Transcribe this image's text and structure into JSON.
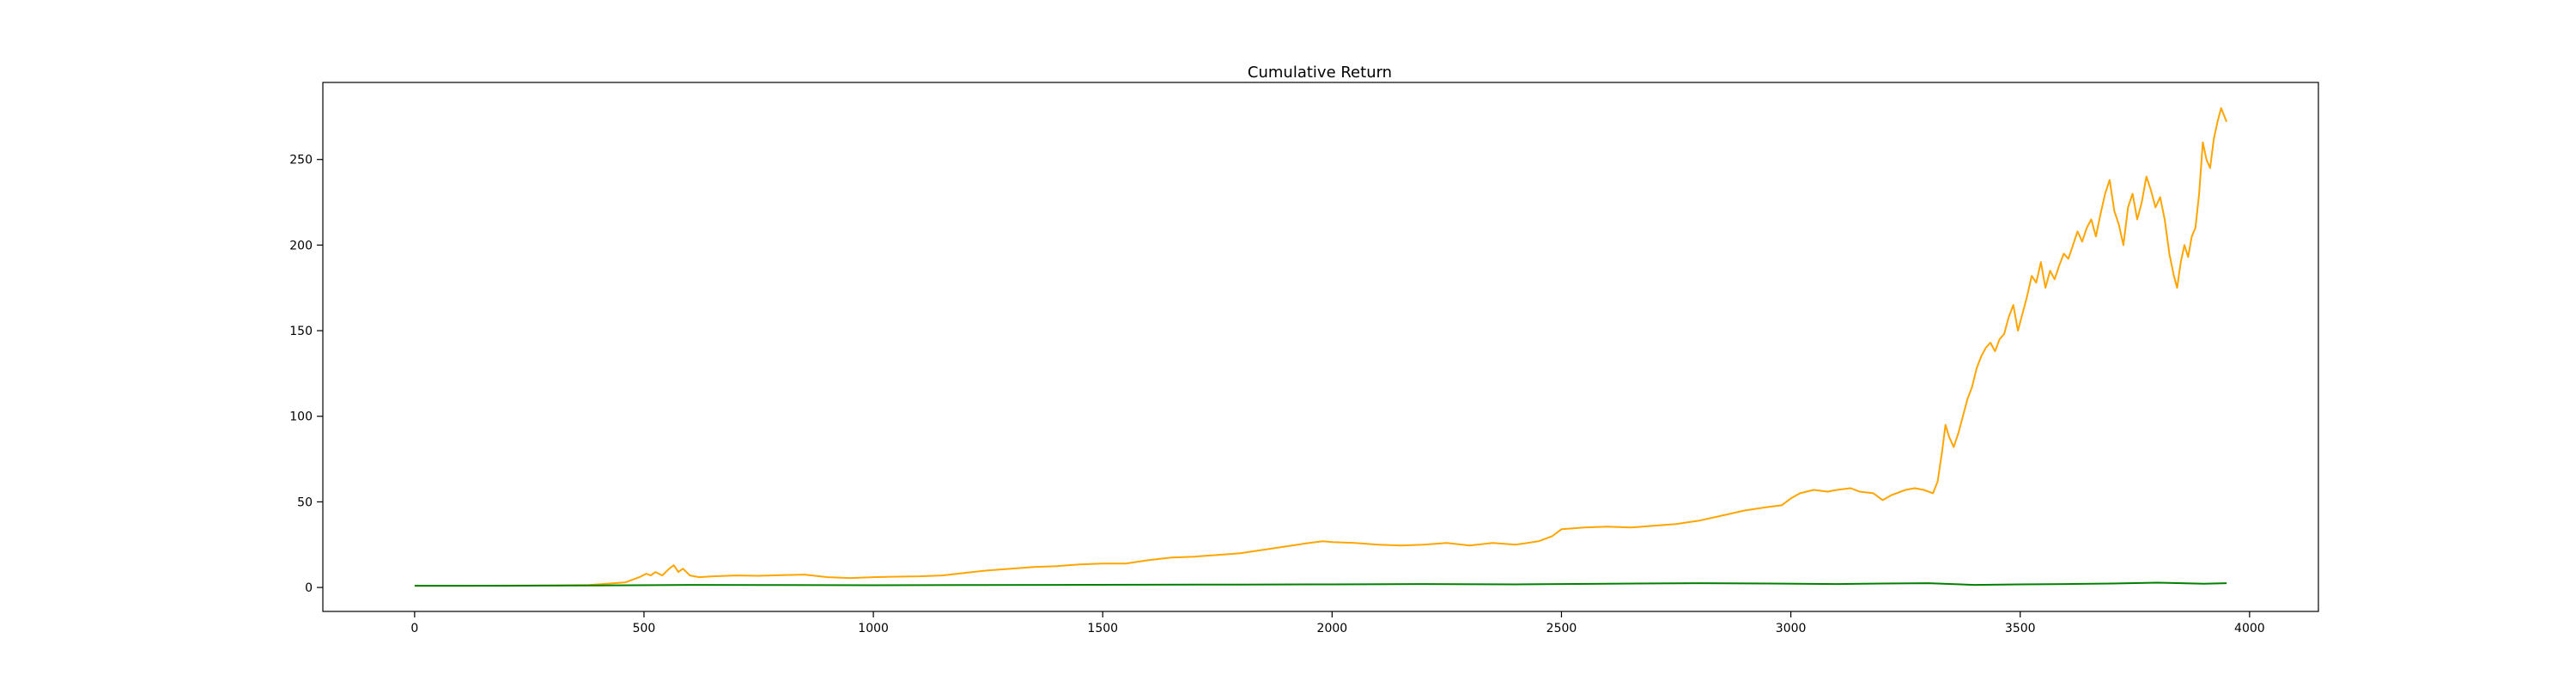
{
  "chart_data": {
    "type": "line",
    "title": "Cumulative Return",
    "xlabel": "",
    "ylabel": "",
    "xlim": [
      -200,
      4150
    ],
    "ylim": [
      -14,
      295
    ],
    "xticks": [
      0,
      500,
      1000,
      1500,
      2000,
      2500,
      3000,
      3500,
      4000
    ],
    "yticks": [
      0,
      50,
      100,
      150,
      200,
      250
    ],
    "grid": false,
    "legend": "none",
    "series": [
      {
        "color": "#ffa500",
        "points": [
          [
            0,
            1
          ],
          [
            100,
            1
          ],
          [
            200,
            1.1
          ],
          [
            300,
            1.2
          ],
          [
            380,
            1.4
          ],
          [
            420,
            2.2
          ],
          [
            460,
            3
          ],
          [
            490,
            6
          ],
          [
            505,
            8
          ],
          [
            515,
            7
          ],
          [
            525,
            9
          ],
          [
            540,
            7
          ],
          [
            555,
            11
          ],
          [
            565,
            13
          ],
          [
            575,
            9
          ],
          [
            585,
            11
          ],
          [
            600,
            7
          ],
          [
            620,
            6
          ],
          [
            650,
            6.5
          ],
          [
            700,
            7
          ],
          [
            750,
            6.8
          ],
          [
            800,
            7.2
          ],
          [
            850,
            7.5
          ],
          [
            900,
            6
          ],
          [
            950,
            5.5
          ],
          [
            1000,
            6
          ],
          [
            1050,
            6.3
          ],
          [
            1100,
            6.5
          ],
          [
            1150,
            7
          ],
          [
            1200,
            8.5
          ],
          [
            1250,
            10
          ],
          [
            1300,
            11
          ],
          [
            1350,
            12
          ],
          [
            1400,
            12.5
          ],
          [
            1450,
            13.5
          ],
          [
            1500,
            14
          ],
          [
            1550,
            14
          ],
          [
            1600,
            16
          ],
          [
            1650,
            17.5
          ],
          [
            1700,
            18
          ],
          [
            1750,
            19
          ],
          [
            1800,
            20
          ],
          [
            1850,
            22
          ],
          [
            1900,
            24
          ],
          [
            1950,
            26
          ],
          [
            1980,
            27
          ],
          [
            2000,
            26.5
          ],
          [
            2050,
            26
          ],
          [
            2100,
            25
          ],
          [
            2150,
            24.5
          ],
          [
            2200,
            25
          ],
          [
            2250,
            26
          ],
          [
            2300,
            24.5
          ],
          [
            2350,
            26
          ],
          [
            2400,
            25
          ],
          [
            2450,
            27
          ],
          [
            2480,
            30
          ],
          [
            2500,
            34
          ],
          [
            2550,
            35
          ],
          [
            2600,
            35.5
          ],
          [
            2650,
            35
          ],
          [
            2700,
            36
          ],
          [
            2750,
            37
          ],
          [
            2800,
            39
          ],
          [
            2850,
            42
          ],
          [
            2900,
            45
          ],
          [
            2950,
            47
          ],
          [
            2980,
            48
          ],
          [
            3000,
            52
          ],
          [
            3020,
            55
          ],
          [
            3050,
            57
          ],
          [
            3080,
            56
          ],
          [
            3100,
            57
          ],
          [
            3130,
            58
          ],
          [
            3150,
            56
          ],
          [
            3180,
            55
          ],
          [
            3200,
            51
          ],
          [
            3220,
            54
          ],
          [
            3250,
            57
          ],
          [
            3270,
            58
          ],
          [
            3290,
            57
          ],
          [
            3310,
            55
          ],
          [
            3320,
            62
          ],
          [
            3330,
            80
          ],
          [
            3337,
            95
          ],
          [
            3345,
            88
          ],
          [
            3355,
            82
          ],
          [
            3365,
            90
          ],
          [
            3375,
            100
          ],
          [
            3385,
            110
          ],
          [
            3395,
            117
          ],
          [
            3405,
            128
          ],
          [
            3415,
            135
          ],
          [
            3425,
            140
          ],
          [
            3435,
            143
          ],
          [
            3445,
            138
          ],
          [
            3455,
            145
          ],
          [
            3465,
            148
          ],
          [
            3475,
            158
          ],
          [
            3485,
            165
          ],
          [
            3495,
            150
          ],
          [
            3505,
            160
          ],
          [
            3515,
            170
          ],
          [
            3525,
            182
          ],
          [
            3535,
            178
          ],
          [
            3545,
            190
          ],
          [
            3555,
            175
          ],
          [
            3565,
            185
          ],
          [
            3575,
            180
          ],
          [
            3585,
            188
          ],
          [
            3595,
            195
          ],
          [
            3605,
            192
          ],
          [
            3615,
            200
          ],
          [
            3625,
            208
          ],
          [
            3635,
            202
          ],
          [
            3645,
            210
          ],
          [
            3655,
            215
          ],
          [
            3665,
            205
          ],
          [
            3675,
            218
          ],
          [
            3685,
            230
          ],
          [
            3695,
            238
          ],
          [
            3705,
            220
          ],
          [
            3715,
            212
          ],
          [
            3725,
            200
          ],
          [
            3735,
            222
          ],
          [
            3745,
            230
          ],
          [
            3755,
            215
          ],
          [
            3765,
            225
          ],
          [
            3775,
            240
          ],
          [
            3785,
            232
          ],
          [
            3795,
            222
          ],
          [
            3805,
            228
          ],
          [
            3815,
            215
          ],
          [
            3825,
            195
          ],
          [
            3835,
            182
          ],
          [
            3842,
            175
          ],
          [
            3850,
            190
          ],
          [
            3858,
            200
          ],
          [
            3866,
            193
          ],
          [
            3874,
            205
          ],
          [
            3882,
            210
          ],
          [
            3890,
            230
          ],
          [
            3898,
            260
          ],
          [
            3906,
            250
          ],
          [
            3914,
            245
          ],
          [
            3922,
            262
          ],
          [
            3930,
            272
          ],
          [
            3938,
            280
          ],
          [
            3944,
            276
          ],
          [
            3950,
            272
          ]
        ]
      },
      {
        "color": "#008000",
        "points": [
          [
            0,
            1
          ],
          [
            200,
            1
          ],
          [
            400,
            1.2
          ],
          [
            600,
            1.5
          ],
          [
            800,
            1.4
          ],
          [
            1000,
            1.3
          ],
          [
            1200,
            1.4
          ],
          [
            1400,
            1.5
          ],
          [
            1600,
            1.6
          ],
          [
            1800,
            1.7
          ],
          [
            2000,
            1.8
          ],
          [
            2200,
            2
          ],
          [
            2400,
            1.8
          ],
          [
            2600,
            2.2
          ],
          [
            2800,
            2.5
          ],
          [
            2950,
            2.3
          ],
          [
            3100,
            2
          ],
          [
            3200,
            2.3
          ],
          [
            3300,
            2.5
          ],
          [
            3400,
            1.5
          ],
          [
            3500,
            1.8
          ],
          [
            3600,
            2
          ],
          [
            3700,
            2.3
          ],
          [
            3800,
            2.8
          ],
          [
            3900,
            2.2
          ],
          [
            3950,
            2.5
          ]
        ]
      }
    ]
  }
}
